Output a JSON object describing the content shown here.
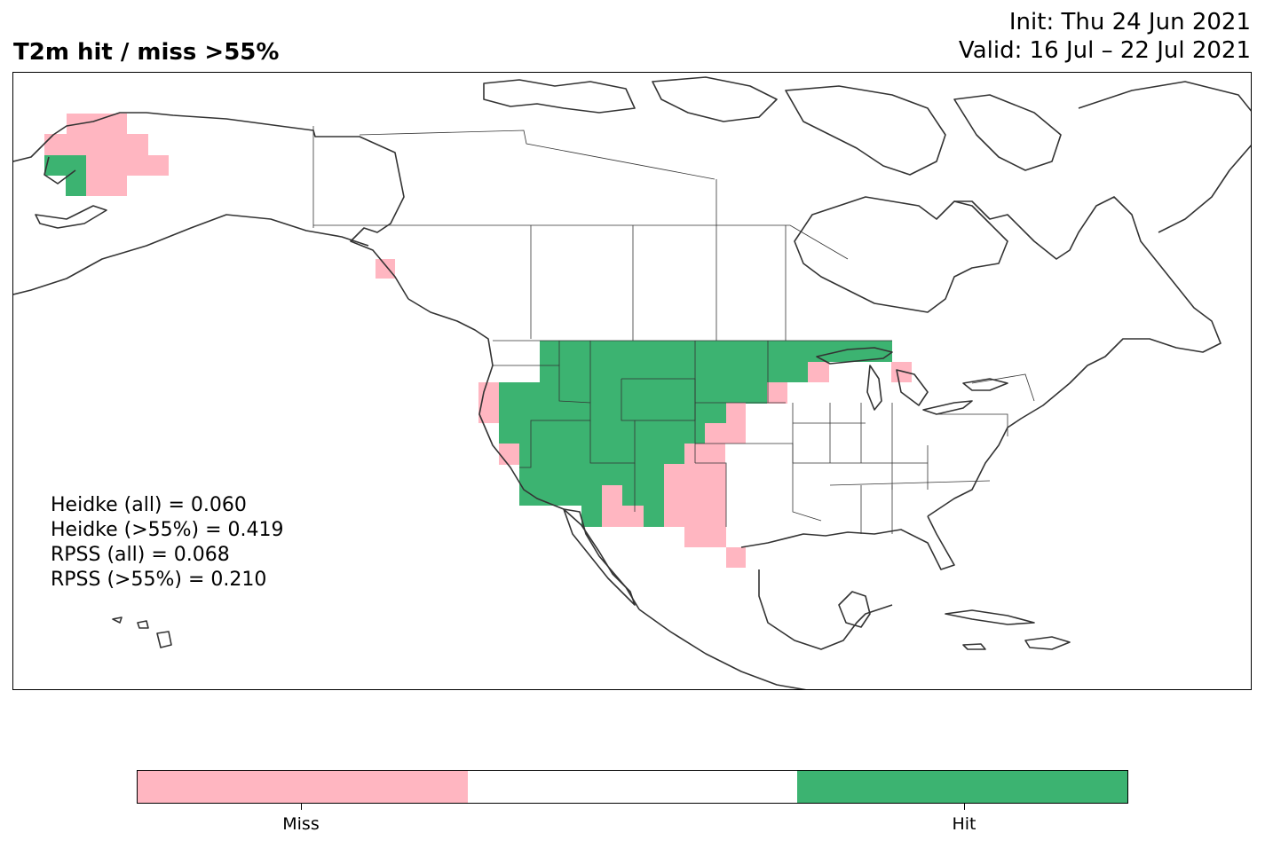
{
  "header": {
    "title": "T2m hit / miss  >55%",
    "init": "Init: Thu 24 Jun 2021",
    "valid": "Valid: 16 Jul – 22 Jul 2021"
  },
  "stats": [
    "Heidke (all) = 0.060",
    "Heidke (>55%) = 0.419",
    "RPSS (all) = 0.068",
    "RPSS (>55%) = 0.210"
  ],
  "colors": {
    "miss": "#ffb6c1",
    "neutral": "#ffffff",
    "hit": "#3cb371",
    "coast": "#333333"
  },
  "legend": {
    "miss_label": "Miss",
    "hit_label": "Hit"
  },
  "map_cells": {
    "hit_regions": [
      "western Alaska",
      "Pacific Northwest",
      "Northern Rockies",
      "Great Basin",
      "Desert Southwest",
      "Northern Plains",
      "Upper Midwest"
    ],
    "miss_regions": [
      "Alaska interior",
      "Alaska panhandle",
      "Northern California coast",
      "New Mexico",
      "West Texas",
      "Southern Texas",
      "Western Great Lakes"
    ]
  }
}
